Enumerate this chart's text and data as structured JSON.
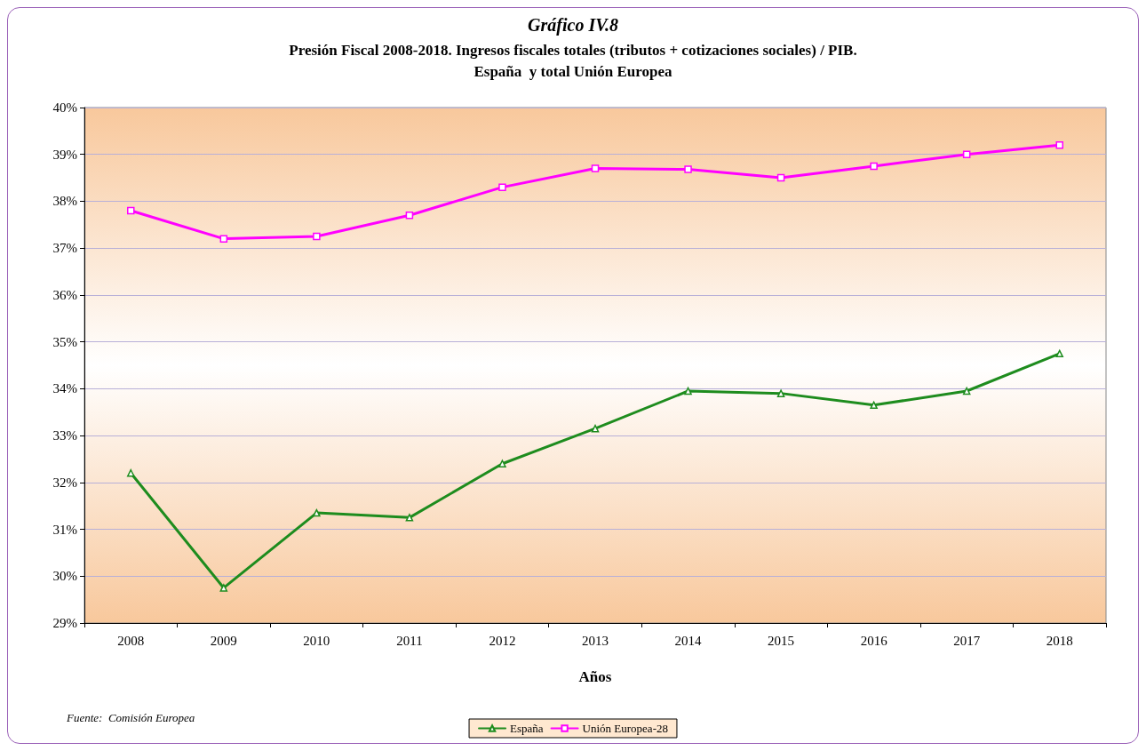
{
  "chart_data": {
    "type": "line",
    "title": "Gráfico IV.8",
    "subtitle": "Presión Fiscal 2008-2018. Ingresos fiscales totales (tributos + cotizaciones sociales) / PIB.\nEspaña  y total Unión Europea",
    "xlabel": "Años",
    "annotations": [
      "Fuente:  Comisión Europea"
    ],
    "categories": [
      "2008",
      "2009",
      "2010",
      "2011",
      "2012",
      "2013",
      "2014",
      "2015",
      "2016",
      "2017",
      "2018"
    ],
    "series": [
      {
        "name": "España",
        "color": "#1e8c1e",
        "marker": "triangle",
        "values": [
          32.2,
          29.75,
          31.35,
          31.25,
          32.4,
          33.15,
          33.95,
          33.9,
          33.65,
          33.95,
          34.75
        ]
      },
      {
        "name": "Unión Europea-28",
        "color": "#ff00ff",
        "marker": "square",
        "values": [
          37.8,
          37.2,
          37.25,
          37.7,
          38.3,
          38.7,
          38.68,
          38.5,
          38.75,
          39.0,
          39.2
        ]
      }
    ],
    "ylim": [
      29,
      40
    ],
    "yticks": [
      {
        "value": 29,
        "label": "29%"
      },
      {
        "value": 30,
        "label": "30%"
      },
      {
        "value": 31,
        "label": "31%"
      },
      {
        "value": 32,
        "label": "32%"
      },
      {
        "value": 33,
        "label": "33%"
      },
      {
        "value": 34,
        "label": "34%"
      },
      {
        "value": 35,
        "label": "35%"
      },
      {
        "value": 36,
        "label": "36%"
      },
      {
        "value": 37,
        "label": "37%"
      },
      {
        "value": 38,
        "label": "38%"
      },
      {
        "value": 39,
        "label": "39%"
      },
      {
        "value": 40,
        "label": "40%"
      }
    ],
    "grid": "y",
    "legend": "bottom",
    "line_style": "solid"
  }
}
